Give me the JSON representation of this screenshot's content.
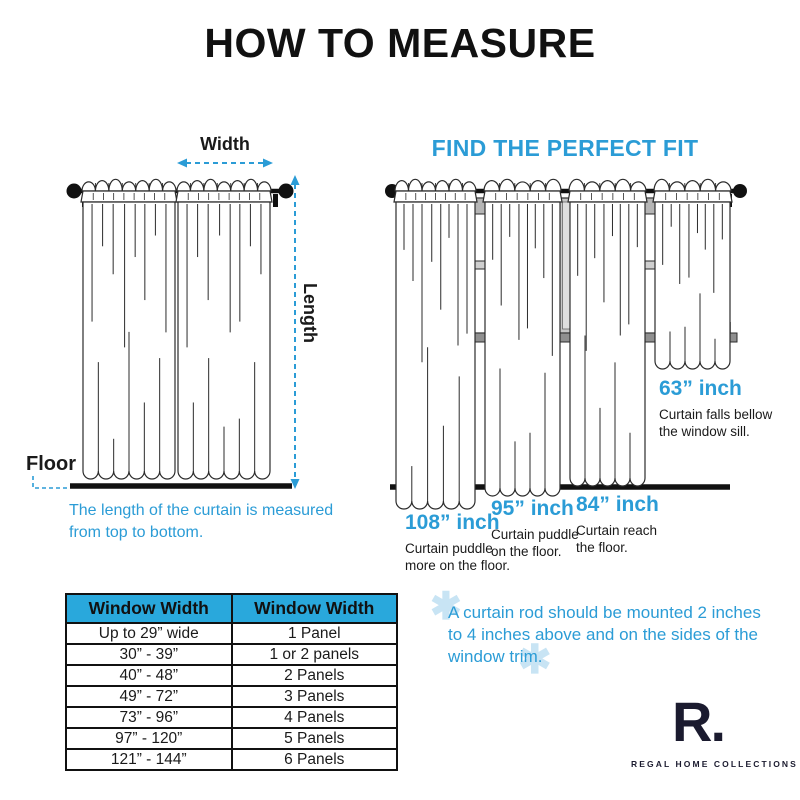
{
  "title": "HOW TO MEASURE",
  "left_diagram": {
    "width_label": "Width",
    "length_label": "Length",
    "floor_label": "Floor",
    "caption_lines": [
      "The length of the curtain is measured",
      "from top to bottom."
    ]
  },
  "right_diagram": {
    "title": "FIND THE PERFECT FIT",
    "sizes": [
      {
        "size": "108” inch",
        "desc": [
          "Curtain puddle",
          "more on the floor."
        ]
      },
      {
        "size": "95” inch",
        "desc": [
          "Curtain puddle",
          "on the floor."
        ]
      },
      {
        "size": "84” inch",
        "desc": [
          "Curtain reach",
          "the floor."
        ]
      },
      {
        "size": "63” inch",
        "desc": [
          "Curtain falls bellow",
          "the window sill."
        ]
      }
    ]
  },
  "table": {
    "headers": [
      "Window Width",
      "Window Width"
    ],
    "rows": [
      [
        "Up to 29” wide",
        "1 Panel"
      ],
      [
        "30” - 39”",
        "1 or 2 panels"
      ],
      [
        "40” - 48”",
        "2 Panels"
      ],
      [
        "49” - 72”",
        "3 Panels"
      ],
      [
        "73” - 96”",
        "4 Panels"
      ],
      [
        "97” - 120”",
        "5 Panels"
      ],
      [
        "121” - 144”",
        "6 Panels"
      ]
    ]
  },
  "note": {
    "lines": [
      "A curtain rod should be mounted 2 inches",
      "to 4 inches above and on the sides of the",
      "window trim."
    ]
  },
  "decor": {
    "asterisk": "✱"
  },
  "logo": {
    "mark": "R.",
    "name": "REGAL HOME COLLECTIONS"
  },
  "colors": {
    "accent": "#2B9CD6",
    "table_header": "#29A8DC",
    "light_asterisk": "#C8E4F4",
    "ink": "#1a1a1a"
  }
}
